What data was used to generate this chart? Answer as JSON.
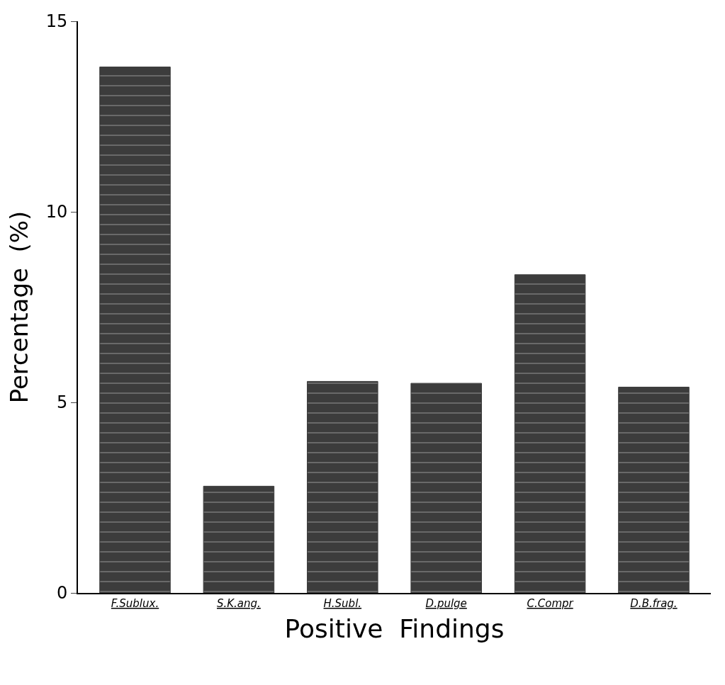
{
  "chart_data": {
    "type": "bar",
    "xlabel": "Positive  Findings",
    "ylabel": "Percentage  (%)",
    "categories": [
      "F.Sublux.",
      "S.K.ang.",
      "H.Subl.",
      "D.pulge",
      "C.Compr",
      "D.B.frag."
    ],
    "values": [
      13.8,
      2.8,
      5.55,
      5.5,
      8.35,
      5.4
    ],
    "color": "#3c3c3c",
    "ylim": [
      0,
      15
    ],
    "yticks": [
      0,
      5,
      10,
      15
    ],
    "legend": false
  }
}
